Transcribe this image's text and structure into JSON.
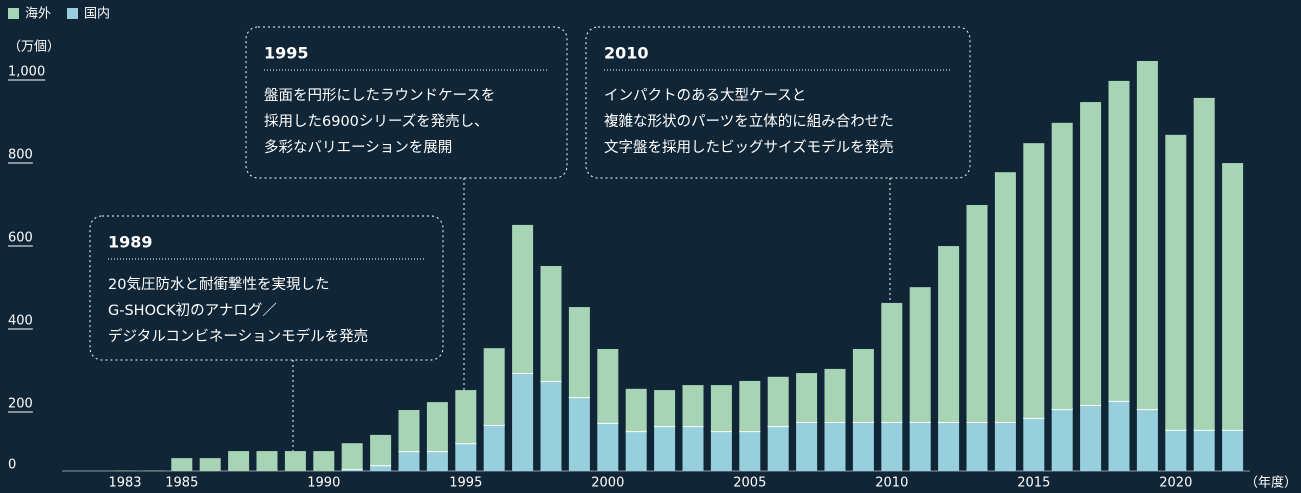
{
  "chart_data": {
    "type": "stacked_bar",
    "y_unit": "（万個）",
    "x_unit": "（年度）",
    "categories": [
      "1983",
      null,
      "1985",
      null,
      null,
      null,
      null,
      "1990",
      null,
      null,
      null,
      null,
      "1995",
      null,
      null,
      null,
      null,
      "2000",
      null,
      null,
      null,
      null,
      "2005",
      null,
      null,
      null,
      null,
      "2010",
      null,
      null,
      null,
      null,
      "2015",
      null,
      null,
      null,
      null,
      "2020",
      null,
      null
    ],
    "series": [
      {
        "name": "国内",
        "color": "#97cfdc",
        "values": [
          0,
          0,
          0,
          0,
          0,
          0,
          0,
          0,
          5,
          14,
          48,
          48,
          67,
          111,
          236,
          217,
          178,
          116,
          96,
          108,
          108,
          96,
          96,
          108,
          118,
          118,
          118,
          118,
          118,
          118,
          118,
          118,
          128,
          149,
          159,
          169,
          149,
          99,
          99,
          99
        ]
      },
      {
        "name": "海外",
        "color": "#a6d4b4",
        "values": [
          1,
          1,
          31,
          31,
          48,
          48,
          48,
          48,
          62,
          73,
          99,
          118,
          128,
          185,
          357,
          277,
          217,
          178,
          102,
          87,
          99,
          111,
          121,
          119,
          118,
          128,
          176,
          287,
          325,
          424,
          523,
          602,
          662,
          690,
          730,
          771,
          839,
          711,
          800,
          643
        ]
      }
    ],
    "legend_order": [
      1,
      0
    ],
    "ylim": [
      0,
      1000
    ],
    "yticks": [
      0,
      200,
      400,
      600,
      800,
      {
        "value": 1000,
        "label": "1,000"
      }
    ],
    "annotations": [
      {
        "title": "1989",
        "lines": [
          "20気圧防水と耐衝撃性を実現した",
          "G-SHOCK初のアナログ／",
          "デジタルコンビネーションモデルを発売"
        ]
      },
      {
        "title": "1995",
        "lines": [
          "盤面を円形にしたラウンドケースを",
          "採用した6900シリーズを発売し、",
          "多彩なバリエーションを展開"
        ]
      },
      {
        "title": "2010",
        "lines": [
          "インパクトのある大型ケースと",
          "複雑な形状のパーツを立体的に組み合わせた",
          "文字盤を採用したビッグサイズモデルを発売"
        ]
      }
    ]
  }
}
